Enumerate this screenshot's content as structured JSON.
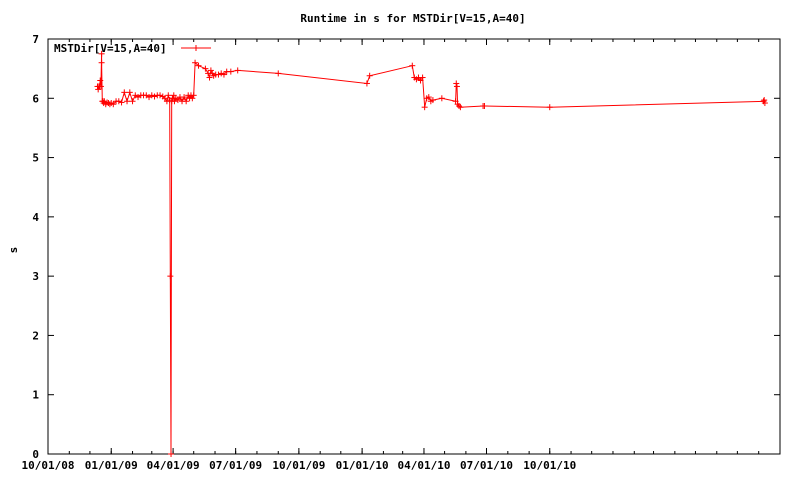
{
  "chart_data": {
    "type": "line",
    "title": "Runtime in s for MSTDir[V=15,A=40]",
    "xlabel": "",
    "ylabel": "s",
    "x_axis_type": "date",
    "xlim": [
      "2008-10-01",
      "2011-09-01"
    ],
    "ylim": [
      0,
      7
    ],
    "yticks": [
      0,
      1,
      2,
      3,
      4,
      5,
      6,
      7
    ],
    "xticks": [
      {
        "date": "2008-10-01",
        "label": "10/01/08"
      },
      {
        "date": "2009-01-01",
        "label": "01/01/09"
      },
      {
        "date": "2009-04-01",
        "label": "04/01/09"
      },
      {
        "date": "2009-07-01",
        "label": "07/01/09"
      },
      {
        "date": "2009-10-01",
        "label": "10/01/09"
      },
      {
        "date": "2010-01-01",
        "label": "01/01/10"
      },
      {
        "date": "2010-04-01",
        "label": "04/01/10"
      },
      {
        "date": "2010-07-01",
        "label": "07/01/10"
      },
      {
        "date": "2010-10-01",
        "label": "10/01/10"
      }
    ],
    "grid": false,
    "legend_position": "top-left",
    "colors": {
      "series": "#ff0000",
      "axis": "#000000"
    },
    "series": [
      {
        "name": "MSTDir[V=15,A=40]",
        "x": [
          "2008-12-12",
          "2008-12-13",
          "2008-12-14",
          "2008-12-15",
          "2008-12-16",
          "2008-12-17",
          "2008-12-18",
          "2008-12-18",
          "2008-12-19",
          "2008-12-20",
          "2008-12-21",
          "2008-12-22",
          "2008-12-24",
          "2008-12-26",
          "2008-12-28",
          "2008-12-30",
          "2009-01-01",
          "2009-01-04",
          "2009-01-08",
          "2009-01-12",
          "2009-01-16",
          "2009-01-20",
          "2009-01-24",
          "2009-01-28",
          "2009-02-01",
          "2009-02-05",
          "2009-02-09",
          "2009-02-13",
          "2009-02-17",
          "2009-02-21",
          "2009-02-25",
          "2009-03-01",
          "2009-03-05",
          "2009-03-09",
          "2009-03-13",
          "2009-03-17",
          "2009-03-20",
          "2009-03-23",
          "2009-03-25",
          "2009-03-27",
          "2009-03-28",
          "2009-03-29",
          "2009-03-30",
          "2009-03-31",
          "2009-04-01",
          "2009-04-02",
          "2009-04-03",
          "2009-04-05",
          "2009-04-08",
          "2009-04-11",
          "2009-04-14",
          "2009-04-17",
          "2009-04-20",
          "2009-04-23",
          "2009-04-25",
          "2009-04-27",
          "2009-04-29",
          "2009-05-01",
          "2009-05-03",
          "2009-05-08",
          "2009-05-18",
          "2009-05-22",
          "2009-05-24",
          "2009-05-26",
          "2009-05-28",
          "2009-05-30",
          "2009-06-02",
          "2009-06-06",
          "2009-06-10",
          "2009-06-14",
          "2009-06-18",
          "2009-06-24",
          "2009-07-04",
          "2009-09-01",
          "2010-01-08",
          "2010-01-12",
          "2010-03-15",
          "2010-03-18",
          "2010-03-21",
          "2010-03-24",
          "2010-03-27",
          "2010-03-30",
          "2010-04-02",
          "2010-04-05",
          "2010-04-08",
          "2010-04-11",
          "2010-04-14",
          "2010-04-27",
          "2010-05-17",
          "2010-05-18",
          "2010-05-19",
          "2010-05-20",
          "2010-05-22",
          "2010-05-24",
          "2010-06-26",
          "2010-06-28",
          "2010-10-01",
          "2011-08-08",
          "2011-08-09",
          "2011-08-10"
        ],
        "y": [
          6.2,
          6.15,
          6.2,
          6.2,
          6.3,
          6.2,
          6.75,
          6.6,
          5.95,
          5.95,
          5.92,
          5.95,
          5.9,
          5.93,
          5.92,
          5.9,
          5.92,
          5.9,
          5.95,
          5.95,
          5.93,
          6.1,
          5.95,
          6.1,
          5.95,
          6.05,
          6.02,
          6.05,
          6.05,
          6.05,
          6.02,
          6.05,
          6.03,
          6.05,
          6.05,
          6.03,
          6.0,
          5.95,
          6.05,
          5.97,
          3.0,
          0.0,
          5.95,
          6.0,
          6.0,
          6.05,
          5.95,
          6.0,
          5.97,
          6.02,
          5.95,
          6.02,
          5.95,
          6.05,
          6.0,
          6.05,
          6.0,
          6.05,
          6.6,
          6.55,
          6.5,
          6.42,
          6.35,
          6.47,
          6.42,
          6.38,
          6.4,
          6.4,
          6.42,
          6.4,
          6.45,
          6.45,
          6.47,
          6.42,
          6.25,
          6.38,
          6.55,
          6.35,
          6.32,
          6.35,
          6.3,
          6.35,
          5.85,
          6.0,
          6.02,
          5.95,
          5.97,
          6.0,
          5.95,
          6.25,
          6.2,
          5.9,
          5.87,
          5.85,
          5.87,
          5.87,
          5.85,
          5.95,
          5.97,
          5.92
        ]
      }
    ]
  }
}
